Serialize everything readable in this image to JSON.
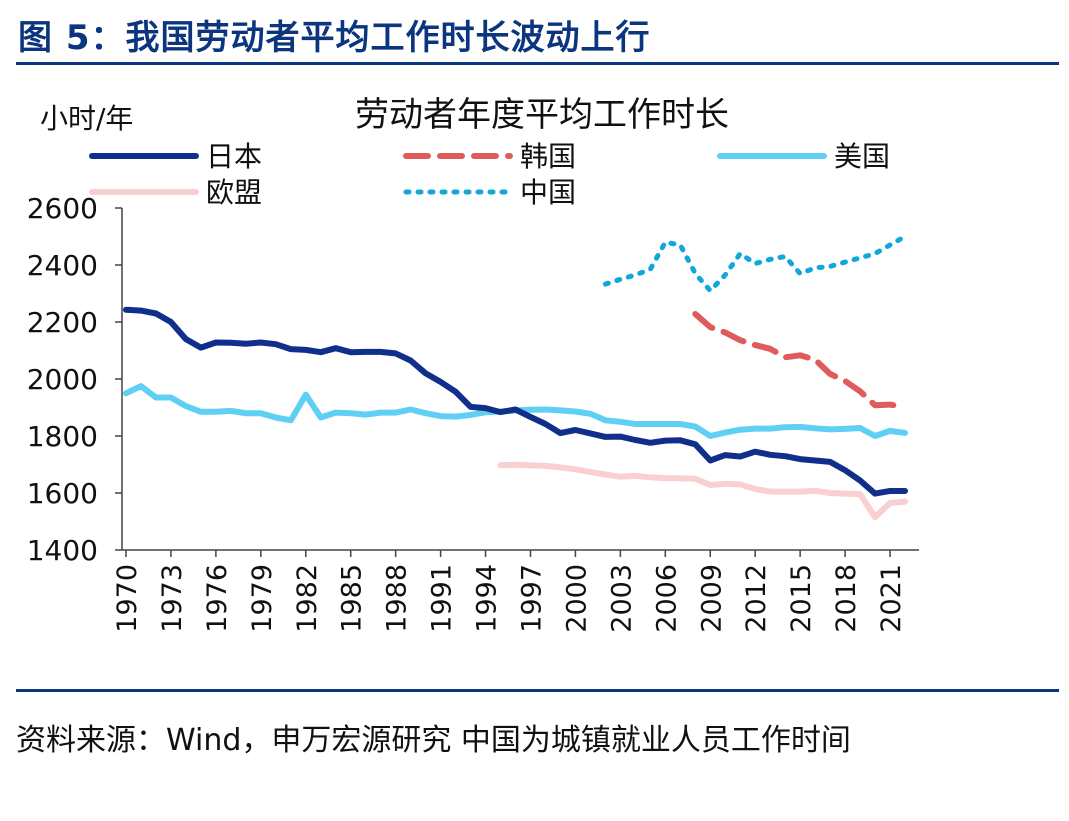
{
  "figure": {
    "title": "图 5：我国劳动者平均工作时长波动上行",
    "source": "资料来源：Wind，申万宏源研究 中国为城镇就业人员工作时间"
  },
  "colors": {
    "accent": "#0c3580",
    "japan": "#0f2f8a",
    "korea": "#e05b5b",
    "usa": "#5fd0f4",
    "eu": "#f9cfd0",
    "china": "#12a7dc"
  },
  "chart_data": {
    "type": "line",
    "title": "劳动者年度平均工作时长",
    "ylabel": "小时/年",
    "xlabel": "",
    "ylim": [
      1400,
      2600
    ],
    "xlim": [
      1970,
      2022
    ],
    "yticks": [
      1400,
      1600,
      1800,
      2000,
      2200,
      2400,
      2600
    ],
    "xticks": [
      "1970",
      "1973",
      "1976",
      "1979",
      "1982",
      "1985",
      "1988",
      "1991",
      "1994",
      "1997",
      "2000",
      "2003",
      "2006",
      "2009",
      "2012",
      "2015",
      "2018",
      "2021"
    ],
    "grid": false,
    "legend_position": "top",
    "series": [
      {
        "name": "日本",
        "style": "solid",
        "color": "#0f2f8a",
        "x": [
          1970,
          1971,
          1972,
          1973,
          1974,
          1975,
          1976,
          1977,
          1978,
          1979,
          1980,
          1981,
          1982,
          1983,
          1984,
          1985,
          1986,
          1987,
          1988,
          1989,
          1990,
          1991,
          1992,
          1993,
          1994,
          1995,
          1996,
          1997,
          1998,
          1999,
          2000,
          2001,
          2002,
          2003,
          2004,
          2005,
          2006,
          2007,
          2008,
          2009,
          2010,
          2011,
          2012,
          2013,
          2014,
          2015,
          2016,
          2017,
          2018,
          2019,
          2020,
          2021,
          2022
        ],
        "y": [
          2243,
          2240,
          2230,
          2200,
          2140,
          2110,
          2128,
          2127,
          2124,
          2128,
          2122,
          2105,
          2102,
          2094,
          2108,
          2094,
          2095,
          2095,
          2090,
          2065,
          2020,
          1990,
          1955,
          1902,
          1898,
          1884,
          1893,
          1867,
          1842,
          1810,
          1821,
          1809,
          1797,
          1798,
          1786,
          1776,
          1784,
          1785,
          1771,
          1714,
          1733,
          1728,
          1745,
          1734,
          1729,
          1719,
          1714,
          1709,
          1680,
          1644,
          1598,
          1607,
          1607
        ]
      },
      {
        "name": "韩国",
        "style": "dashed",
        "color": "#e05b5b",
        "x": [
          2008,
          2009,
          2010,
          2011,
          2012,
          2013,
          2014,
          2015,
          2016,
          2017,
          2018,
          2019,
          2020,
          2021,
          2022
        ],
        "y": [
          2228,
          2182,
          2163,
          2136,
          2119,
          2106,
          2076,
          2083,
          2068,
          2018,
          1993,
          1957,
          1908,
          1910,
          1901
        ]
      },
      {
        "name": "美国",
        "style": "solid",
        "color": "#5fd0f4",
        "x": [
          1970,
          1971,
          1972,
          1973,
          1974,
          1975,
          1976,
          1977,
          1978,
          1979,
          1980,
          1981,
          1982,
          1983,
          1984,
          1985,
          1986,
          1987,
          1988,
          1989,
          1990,
          1991,
          1992,
          1993,
          1994,
          1995,
          1996,
          1997,
          1998,
          1999,
          2000,
          2001,
          2002,
          2003,
          2004,
          2005,
          2006,
          2007,
          2008,
          2009,
          2010,
          2011,
          2012,
          2013,
          2014,
          2015,
          2016,
          2017,
          2018,
          2019,
          2020,
          2021,
          2022
        ],
        "y": [
          1950,
          1975,
          1935,
          1935,
          1905,
          1885,
          1885,
          1888,
          1880,
          1880,
          1865,
          1855,
          1945,
          1865,
          1882,
          1880,
          1875,
          1882,
          1882,
          1893,
          1880,
          1870,
          1868,
          1874,
          1883,
          1886,
          1890,
          1892,
          1893,
          1890,
          1886,
          1878,
          1855,
          1850,
          1842,
          1842,
          1842,
          1842,
          1833,
          1800,
          1812,
          1822,
          1826,
          1826,
          1831,
          1832,
          1827,
          1823,
          1825,
          1828,
          1800,
          1818,
          1811
        ]
      },
      {
        "name": "欧盟",
        "style": "solid",
        "color": "#f9cfd0",
        "x": [
          1995,
          1996,
          1997,
          1998,
          1999,
          2000,
          2001,
          2002,
          2003,
          2004,
          2005,
          2006,
          2007,
          2008,
          2009,
          2010,
          2011,
          2012,
          2013,
          2014,
          2015,
          2016,
          2017,
          2018,
          2019,
          2020,
          2021,
          2022
        ],
        "y": [
          1698,
          1699,
          1697,
          1695,
          1690,
          1683,
          1674,
          1665,
          1657,
          1660,
          1655,
          1652,
          1652,
          1650,
          1628,
          1632,
          1630,
          1614,
          1605,
          1605,
          1605,
          1608,
          1600,
          1598,
          1596,
          1515,
          1565,
          1570
        ]
      },
      {
        "name": "中国",
        "style": "dotted",
        "color": "#12a7dc",
        "x": [
          2002,
          2003,
          2004,
          2005,
          2006,
          2007,
          2008,
          2009,
          2010,
          2011,
          2012,
          2013,
          2014,
          2015,
          2016,
          2017,
          2018,
          2019,
          2020,
          2021,
          2022
        ],
        "y": [
          2333,
          2350,
          2365,
          2385,
          2480,
          2470,
          2370,
          2310,
          2365,
          2440,
          2405,
          2420,
          2430,
          2370,
          2390,
          2395,
          2410,
          2425,
          2440,
          2470,
          2500
        ]
      }
    ]
  }
}
